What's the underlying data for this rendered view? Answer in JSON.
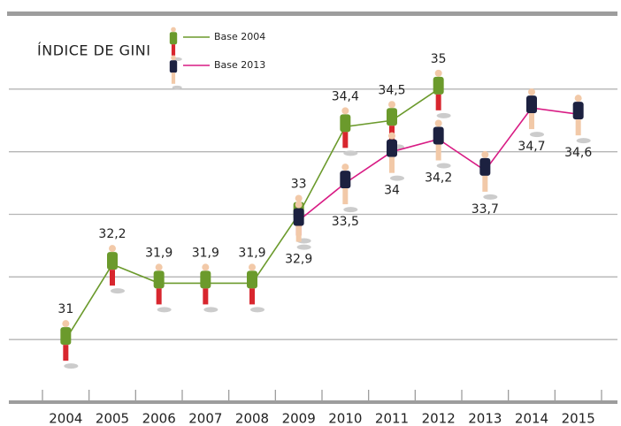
{
  "chart_data": {
    "type": "line",
    "title": "ÍNDICE DE GINI",
    "categories": [
      "2004",
      "2005",
      "2006",
      "2007",
      "2008",
      "2009",
      "2010",
      "2011",
      "2012",
      "2013",
      "2014",
      "2015"
    ],
    "series": [
      {
        "name": "Base 2004",
        "color": "#6b9a2c",
        "values": [
          31,
          32.2,
          31.9,
          31.9,
          31.9,
          33,
          34.4,
          34.5,
          35,
          null,
          null,
          null
        ],
        "value_labels": [
          "31",
          "32,2",
          "31,9",
          "31,9",
          "31,9",
          "33",
          "34,4",
          "34,5",
          "35",
          null,
          null,
          null
        ]
      },
      {
        "name": "Base 2013",
        "color": "#d81b84",
        "values": [
          null,
          null,
          null,
          null,
          null,
          32.9,
          33.5,
          34,
          34.2,
          33.7,
          34.7,
          34.6
        ],
        "value_labels": [
          null,
          null,
          null,
          null,
          null,
          "32,9",
          "33,5",
          "34",
          "34,2",
          "33,7",
          "34,7",
          "34,6"
        ]
      }
    ],
    "ylim": [
      30,
      36
    ],
    "yticks": [
      31,
      32,
      33,
      34,
      35
    ],
    "grid": true
  }
}
